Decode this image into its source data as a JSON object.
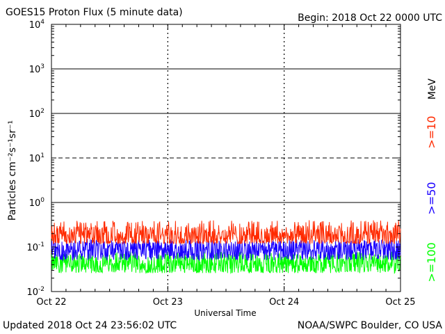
{
  "header": {
    "title": "GOES15 Proton Flux (5 minute data)",
    "begin": "Begin: 2018 Oct 22 0000 UTC"
  },
  "footer": {
    "updated": "Updated 2018 Oct 24 23:56:02 UTC",
    "credit": "NOAA/SWPC Boulder, CO USA"
  },
  "legend": {
    "unit": "MeV",
    "entries": [
      {
        "label": ">=10",
        "color": "#ff2a00"
      },
      {
        "label": ">=50",
        "color": "#1a00ff"
      },
      {
        "label": ">=100",
        "color": "#00ff00"
      }
    ]
  },
  "chart_data": {
    "type": "line",
    "title": "GOES15 Proton Flux (5 minute data)",
    "xlabel": "Universal Time",
    "ylabel": "Particles cm⁻²s⁻¹sr⁻¹",
    "y_scale": "log",
    "ylim": [
      0.01,
      10000
    ],
    "x_ticks": [
      "Oct 22",
      "Oct 23",
      "Oct 24",
      "Oct 25"
    ],
    "y_ticks": [
      {
        "value": 0.01,
        "base": "10",
        "exp": "-2"
      },
      {
        "value": 0.1,
        "base": "10",
        "exp": "-1"
      },
      {
        "value": 1,
        "base": "10",
        "exp": "0"
      },
      {
        "value": 10,
        "base": "10",
        "exp": "1"
      },
      {
        "value": 100,
        "base": "10",
        "exp": "2"
      },
      {
        "value": 1000,
        "base": "10",
        "exp": "3"
      },
      {
        "value": 10000,
        "base": "10",
        "exp": "4"
      }
    ],
    "threshold_lines": [
      {
        "value": 10,
        "style": "dashed"
      },
      {
        "value": 1,
        "style": "solid"
      },
      {
        "value": 100,
        "style": "solid"
      },
      {
        "value": 1000,
        "style": "solid"
      }
    ],
    "series": [
      {
        "name": ">=10 MeV",
        "color": "#ff2a00",
        "median": 0.18,
        "min": 0.12,
        "max": 0.4
      },
      {
        "name": ">=50 MeV",
        "color": "#1a00ff",
        "median": 0.085,
        "min": 0.05,
        "max": 0.15
      },
      {
        "name": ">=100 MeV",
        "color": "#00ff00",
        "median": 0.042,
        "min": 0.026,
        "max": 0.08
      }
    ],
    "grid": false
  }
}
